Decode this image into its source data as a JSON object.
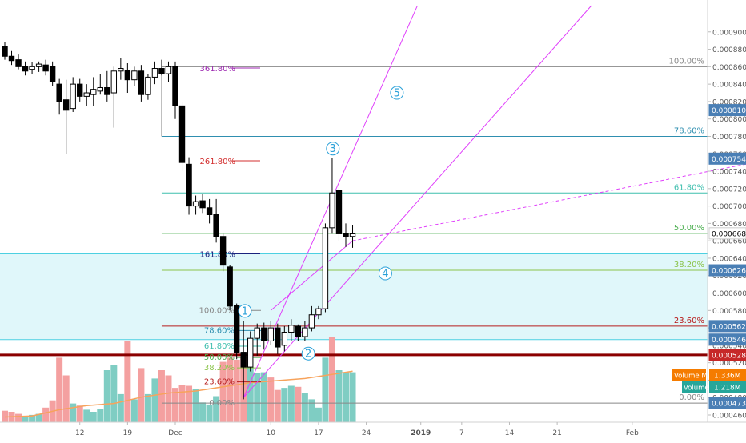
{
  "chart_data": {
    "type": "candlestick",
    "title": "",
    "colors": {
      "up_candle": "#ffffff",
      "down_candle": "#000000",
      "volume_up": "#7fcdc3",
      "volume_down": "#f4a0a0",
      "volume_ma": "#f7a35c",
      "fib_top": "#888888",
      "fib_786": "#2f8fb0",
      "fib_618": "#3fbfae",
      "fib_50": "#4caf50",
      "fib_382": "#8bc34a",
      "fib_236": "#b71c1c",
      "fib_0": "#888888",
      "ext_361": "#9c27b0",
      "ext_261": "#d32f2f",
      "ext_161": "#1a237e",
      "trendline": "#e040fb",
      "zone_fill": "#e0f7fa",
      "zone_border": "#4dd0e1",
      "support_line": "#8b0000",
      "wave_label": "#29a0d8",
      "price_tag_blue": "#4a7fb5",
      "price_tag_red": "#c62828",
      "price_tag_green": "#26a69a",
      "price_tag_orange": "#f57c00"
    },
    "y_axis": {
      "range": [
        0.00046,
        0.00092
      ],
      "tick_labels": [
        "0.00090000",
        "0.00088000",
        "0.00086000",
        "0.00084000",
        "0.00082000",
        "0.00080000",
        "0.00078000",
        "0.00076000",
        "0.00074000",
        "0.00072000",
        "0.00070000",
        "0.00068000",
        "0.00066000",
        "0.00064000",
        "0.00062000",
        "0.00060000",
        "0.00058000",
        "0.00056000",
        "0.00054000",
        "0.00052000",
        "0.00050000",
        "0.00048000",
        "0.00046000"
      ],
      "tick_values": [
        0.0009,
        0.00088,
        0.00086,
        0.00084,
        0.00082,
        0.0008,
        0.00078,
        0.00076,
        0.00074,
        0.00072,
        0.0007,
        0.00068,
        0.00066,
        0.00064,
        0.00062,
        0.0006,
        0.00058,
        0.00056,
        0.00054,
        0.00052,
        0.0005,
        0.00048,
        0.00046
      ],
      "price_tags": [
        {
          "label": "0.00081021",
          "value": 0.00081021,
          "color": "#4a7fb5"
        },
        {
          "label": "0.00075445",
          "value": 0.00075445,
          "color": "#4a7fb5"
        },
        {
          "label": "0.00066858",
          "value": 0.00066858,
          "color": "#ffffff",
          "text_color": "#000000"
        },
        {
          "label": "0.00062616",
          "value": 0.00062616,
          "color": "#4a7fb5"
        },
        {
          "label": "0.00056204",
          "value": 0.00056204,
          "color": "#4a7fb5"
        },
        {
          "label": "0.00054655",
          "value": 0.00054655,
          "color": "#4a7fb5"
        },
        {
          "label": "0.00052898",
          "value": 0.00052898,
          "color": "#c62828"
        },
        {
          "label": "0.00047366",
          "value": 0.00047366,
          "color": "#4a7fb5"
        }
      ]
    },
    "x_axis": {
      "labels": [
        "12",
        "19",
        "Dec",
        "10",
        "17",
        "24",
        "2019",
        "7",
        "14",
        "21",
        "Feb"
      ],
      "label_days": [
        12,
        19,
        26,
        40,
        47,
        54,
        62,
        68,
        75,
        82,
        93
      ]
    },
    "candles": [
      {
        "d": 1,
        "o": 0.000883,
        "h": 0.000888,
        "l": 0.000868,
        "c": 0.000872
      },
      {
        "d": 2,
        "o": 0.000872,
        "h": 0.000878,
        "l": 0.000862,
        "c": 0.000867
      },
      {
        "d": 3,
        "o": 0.000868,
        "h": 0.000874,
        "l": 0.000857,
        "c": 0.00086
      },
      {
        "d": 4,
        "o": 0.00086,
        "h": 0.000866,
        "l": 0.00085,
        "c": 0.000855
      },
      {
        "d": 5,
        "o": 0.000857,
        "h": 0.000865,
        "l": 0.000852,
        "c": 0.00086
      },
      {
        "d": 6,
        "o": 0.00086,
        "h": 0.000866,
        "l": 0.000854,
        "c": 0.000863
      },
      {
        "d": 7,
        "o": 0.000862,
        "h": 0.000868,
        "l": 0.00085,
        "c": 0.000855
      },
      {
        "d": 8,
        "o": 0.00086,
        "h": 0.000866,
        "l": 0.000838,
        "c": 0.000843
      },
      {
        "d": 9,
        "o": 0.00084,
        "h": 0.000846,
        "l": 0.000805,
        "c": 0.00082
      },
      {
        "d": 10,
        "o": 0.000822,
        "h": 0.000845,
        "l": 0.00076,
        "c": 0.00081
      },
      {
        "d": 11,
        "o": 0.000812,
        "h": 0.000848,
        "l": 0.000808,
        "c": 0.00084
      },
      {
        "d": 12,
        "o": 0.00084,
        "h": 0.000846,
        "l": 0.00082,
        "c": 0.000826
      },
      {
        "d": 13,
        "o": 0.000826,
        "h": 0.00084,
        "l": 0.000815,
        "c": 0.00083
      },
      {
        "d": 14,
        "o": 0.000828,
        "h": 0.000848,
        "l": 0.000815,
        "c": 0.000834
      },
      {
        "d": 15,
        "o": 0.000832,
        "h": 0.000852,
        "l": 0.000828,
        "c": 0.000836
      },
      {
        "d": 16,
        "o": 0.000836,
        "h": 0.000855,
        "l": 0.00082,
        "c": 0.000828
      },
      {
        "d": 17,
        "o": 0.00083,
        "h": 0.00086,
        "l": 0.00079,
        "c": 0.000855
      },
      {
        "d": 18,
        "o": 0.000855,
        "h": 0.00087,
        "l": 0.000845,
        "c": 0.000858
      },
      {
        "d": 19,
        "o": 0.000856,
        "h": 0.000864,
        "l": 0.00083,
        "c": 0.000845
      },
      {
        "d": 20,
        "o": 0.000845,
        "h": 0.00086,
        "l": 0.000838,
        "c": 0.000855
      },
      {
        "d": 21,
        "o": 0.000855,
        "h": 0.000862,
        "l": 0.00082,
        "c": 0.000828
      },
      {
        "d": 22,
        "o": 0.000828,
        "h": 0.000852,
        "l": 0.000822,
        "c": 0.000848
      },
      {
        "d": 23,
        "o": 0.000848,
        "h": 0.000866,
        "l": 0.00084,
        "c": 0.000858
      },
      {
        "d": 24,
        "o": 0.000858,
        "h": 0.000868,
        "l": 0.00085,
        "c": 0.000852
      },
      {
        "d": 25,
        "o": 0.000852,
        "h": 0.000866,
        "l": 0.000842,
        "c": 0.00086
      },
      {
        "d": 26,
        "o": 0.00086,
        "h": 0.000866,
        "l": 0.0008,
        "c": 0.000815
      },
      {
        "d": 27,
        "o": 0.000815,
        "h": 0.00082,
        "l": 0.00074,
        "c": 0.00075
      },
      {
        "d": 28,
        "o": 0.000748,
        "h": 0.000756,
        "l": 0.00069,
        "c": 0.0007
      },
      {
        "d": 29,
        "o": 0.0007,
        "h": 0.000712,
        "l": 0.00069,
        "c": 0.000705
      },
      {
        "d": 30,
        "o": 0.000706,
        "h": 0.000714,
        "l": 0.000692,
        "c": 0.000698
      },
      {
        "d": 31,
        "o": 0.000698,
        "h": 0.000708,
        "l": 0.00068,
        "c": 0.00069
      },
      {
        "d": 32,
        "o": 0.00069,
        "h": 0.000708,
        "l": 0.000658,
        "c": 0.000665
      },
      {
        "d": 33,
        "o": 0.000665,
        "h": 0.000668,
        "l": 0.000625,
        "c": 0.000632
      },
      {
        "d": 34,
        "o": 0.00063,
        "h": 0.000632,
        "l": 0.00058,
        "c": 0.000585
      },
      {
        "d": 35,
        "o": 0.000586,
        "h": 0.000588,
        "l": 0.000524,
        "c": 0.000532
      },
      {
        "d": 36,
        "o": 0.000532,
        "h": 0.000568,
        "l": 0.000478,
        "c": 0.000515
      },
      {
        "d": 37,
        "o": 0.000515,
        "h": 0.000556,
        "l": 0.00051,
        "c": 0.000548
      },
      {
        "d": 38,
        "o": 0.000548,
        "h": 0.000565,
        "l": 0.000528,
        "c": 0.00056
      },
      {
        "d": 39,
        "o": 0.00056,
        "h": 0.000566,
        "l": 0.000535,
        "c": 0.000545
      },
      {
        "d": 40,
        "o": 0.000545,
        "h": 0.000568,
        "l": 0.00054,
        "c": 0.00056
      },
      {
        "d": 41,
        "o": 0.00056,
        "h": 0.000565,
        "l": 0.00053,
        "c": 0.000538
      },
      {
        "d": 42,
        "o": 0.00054,
        "h": 0.000562,
        "l": 0.000533,
        "c": 0.000555
      },
      {
        "d": 43,
        "o": 0.000555,
        "h": 0.00057,
        "l": 0.000545,
        "c": 0.000563
      },
      {
        "d": 44,
        "o": 0.000562,
        "h": 0.000564,
        "l": 0.000545,
        "c": 0.00055
      },
      {
        "d": 45,
        "o": 0.00055,
        "h": 0.000568,
        "l": 0.000545,
        "c": 0.00056
      },
      {
        "d": 46,
        "o": 0.00056,
        "h": 0.000585,
        "l": 0.000556,
        "c": 0.000575
      },
      {
        "d": 47,
        "o": 0.000575,
        "h": 0.000585,
        "l": 0.00057,
        "c": 0.000582
      },
      {
        "d": 48,
        "o": 0.000582,
        "h": 0.00068,
        "l": 0.000578,
        "c": 0.000675
      },
      {
        "d": 49,
        "o": 0.000675,
        "h": 0.000755,
        "l": 0.000668,
        "c": 0.000715
      },
      {
        "d": 50,
        "o": 0.000718,
        "h": 0.000722,
        "l": 0.00066,
        "c": 0.000668
      },
      {
        "d": 51,
        "o": 0.000668,
        "h": 0.00068,
        "l": 0.000653,
        "c": 0.000665
      },
      {
        "d": 52,
        "o": 0.000665,
        "h": 0.000678,
        "l": 0.000652,
        "c": 0.000668
      }
    ],
    "volume": {
      "values": [
        [
          1,
          0.11,
          "down"
        ],
        [
          2,
          0.1,
          "down"
        ],
        [
          3,
          0.08,
          "down"
        ],
        [
          4,
          0.05,
          "up"
        ],
        [
          5,
          0.07,
          "up"
        ],
        [
          6,
          0.08,
          "up"
        ],
        [
          7,
          0.14,
          "down"
        ],
        [
          8,
          0.21,
          "down"
        ],
        [
          9,
          0.62,
          "down"
        ],
        [
          10,
          0.45,
          "down"
        ],
        [
          11,
          0.18,
          "up"
        ],
        [
          12,
          0.16,
          "down"
        ],
        [
          13,
          0.12,
          "up"
        ],
        [
          14,
          0.1,
          "up"
        ],
        [
          15,
          0.13,
          "up"
        ],
        [
          16,
          0.5,
          "up"
        ],
        [
          17,
          0.55,
          "up"
        ],
        [
          18,
          0.27,
          "up"
        ],
        [
          19,
          0.78,
          "down"
        ],
        [
          20,
          0.22,
          "up"
        ],
        [
          21,
          0.52,
          "down"
        ],
        [
          22,
          0.27,
          "up"
        ],
        [
          23,
          0.42,
          "up"
        ],
        [
          24,
          0.5,
          "down"
        ],
        [
          25,
          0.45,
          "down"
        ],
        [
          26,
          0.33,
          "down"
        ],
        [
          27,
          0.36,
          "down"
        ],
        [
          28,
          0.35,
          "down"
        ],
        [
          29,
          0.32,
          "up"
        ],
        [
          30,
          0.19,
          "up"
        ],
        [
          31,
          0.17,
          "up"
        ],
        [
          32,
          0.25,
          "up"
        ],
        [
          33,
          0.58,
          "down"
        ],
        [
          34,
          0.62,
          "down"
        ],
        [
          35,
          0.6,
          "down"
        ],
        [
          36,
          0.63,
          "down"
        ],
        [
          37,
          0.53,
          "up"
        ],
        [
          38,
          0.47,
          "up"
        ],
        [
          39,
          0.48,
          "up"
        ],
        [
          40,
          0.43,
          "down"
        ],
        [
          41,
          0.31,
          "down"
        ],
        [
          42,
          0.33,
          "up"
        ],
        [
          43,
          0.35,
          "up"
        ],
        [
          44,
          0.34,
          "down"
        ],
        [
          45,
          0.28,
          "up"
        ],
        [
          46,
          0.22,
          "up"
        ],
        [
          47,
          0.14,
          "up"
        ],
        [
          48,
          0.62,
          "up"
        ],
        [
          49,
          0.82,
          "down"
        ],
        [
          50,
          0.5,
          "up"
        ],
        [
          51,
          0.48,
          "up"
        ],
        [
          52,
          0.48,
          "up"
        ]
      ],
      "ma": [
        [
          1,
          0.05
        ],
        [
          5,
          0.06
        ],
        [
          9,
          0.12
        ],
        [
          13,
          0.16
        ],
        [
          17,
          0.18
        ],
        [
          21,
          0.24
        ],
        [
          25,
          0.28
        ],
        [
          29,
          0.3
        ],
        [
          33,
          0.34
        ],
        [
          37,
          0.38
        ],
        [
          41,
          0.4
        ],
        [
          45,
          0.42
        ],
        [
          49,
          0.46
        ],
        [
          52,
          0.49
        ]
      ],
      "tags": [
        {
          "label": "Volume MA",
          "value_label": "1.336M",
          "color": "#f57c00"
        },
        {
          "label": "Volume",
          "value_label": "1.218M",
          "color": "#26a69a"
        }
      ]
    },
    "fib_retracement": {
      "start_day": 24,
      "levels": [
        {
          "label": "100.00%",
          "value": 0.00086,
          "color": "#888888"
        },
        {
          "label": "78.60%",
          "value": 0.00078,
          "color": "#2f8fb0"
        },
        {
          "label": "61.80%",
          "value": 0.000715,
          "color": "#3fbfae"
        },
        {
          "label": "50.00%",
          "value": 0.00066858,
          "color": "#4caf50"
        },
        {
          "label": "38.20%",
          "value": 0.00062616,
          "color": "#8bc34a"
        },
        {
          "label": "23.60%",
          "value": 0.00056204,
          "color": "#b71c1c"
        },
        {
          "label": "0.00%",
          "value": 0.00047366,
          "color": "#888888"
        }
      ]
    },
    "fib_extension": {
      "levels": [
        {
          "label": "361.80%",
          "value": 0.0008585,
          "color": "#9c27b0"
        },
        {
          "label": "261.80%",
          "value": 0.000752,
          "color": "#d32f2f"
        },
        {
          "label": "161.80%",
          "value": 0.000645,
          "color": "#1a237e"
        }
      ]
    },
    "mini_fib": {
      "levels": [
        {
          "label": "100.00%",
          "value": 0.00058,
          "color": "#888888"
        },
        {
          "label": "78.60%",
          "value": 0.000557,
          "color": "#2f8fb0"
        },
        {
          "label": "61.80%",
          "value": 0.000539,
          "color": "#3fbfae"
        },
        {
          "label": "50.00%",
          "value": 0.000526,
          "color": "#4caf50"
        },
        {
          "label": "38.20%",
          "value": 0.000514,
          "color": "#8bc34a"
        },
        {
          "label": "23.60%",
          "value": 0.000498,
          "color": "#b71c1c"
        },
        {
          "label": "0.00%",
          "value": 0.00047366,
          "color": "#888888"
        }
      ]
    },
    "zone": {
      "top": 0.000645,
      "bottom": 0.00054655
    },
    "support": 0.00052898,
    "wave_labels": [
      {
        "label": "1",
        "day": 36.2,
        "value": 0.0005795
      },
      {
        "label": "2",
        "day": 45.5,
        "value": 0.0005305
      },
      {
        "label": "3",
        "day": 49.1,
        "value": 0.000766
      },
      {
        "label": "4",
        "day": 56.8,
        "value": 0.0006225
      },
      {
        "label": "5",
        "day": 58.5,
        "value": 0.00083
      }
    ],
    "trendlines": [
      {
        "from": [
          36,
          0.00048
        ],
        "to": [
          61.5,
          0.00093
        ],
        "style": "solid"
      },
      {
        "from": [
          36,
          0.00048
        ],
        "to": [
          87,
          0.00093
        ],
        "style": "solid"
      },
      {
        "from": [
          40,
          0.00058
        ],
        "to": [
          52,
          0.00066
        ],
        "style": "solid"
      },
      {
        "from": [
          52,
          0.00066
        ],
        "to": [
          124,
          0.00077
        ],
        "style": "dashed"
      }
    ]
  }
}
